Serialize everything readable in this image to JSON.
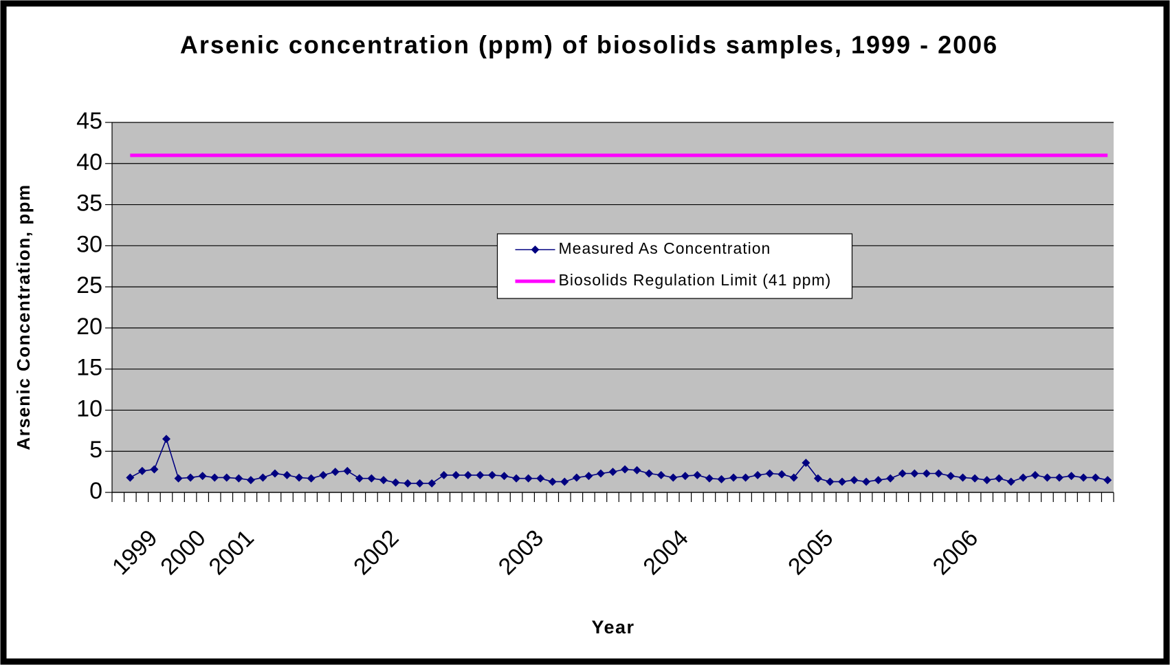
{
  "chart_data": {
    "type": "line",
    "title": "Arsenic concentration (ppm) of biosolids samples, 1999 - 2006",
    "x_label": "Year",
    "y_label": "Arsenic Concentration, ppm",
    "categories": [
      null,
      null,
      null,
      "1999",
      null,
      null,
      null,
      "2000",
      null,
      null,
      null,
      "2001",
      null,
      null,
      null,
      null,
      null,
      null,
      null,
      null,
      null,
      null,
      null,
      "2002",
      null,
      null,
      null,
      null,
      null,
      null,
      null,
      null,
      null,
      null,
      null,
      "2003",
      null,
      null,
      null,
      null,
      null,
      null,
      null,
      null,
      null,
      null,
      null,
      "2004",
      null,
      null,
      null,
      null,
      null,
      null,
      null,
      null,
      null,
      null,
      null,
      "2005",
      null,
      null,
      null,
      null,
      null,
      null,
      null,
      null,
      null,
      null,
      null,
      "2006",
      null,
      null,
      null,
      null,
      null,
      null,
      null,
      null,
      null,
      null,
      null
    ],
    "series": [
      {
        "name": "Measured As Concentration",
        "color": "#000080",
        "marker": "diamond",
        "values": [
          null,
          1.8,
          2.6,
          2.8,
          6.5,
          1.7,
          1.8,
          2.0,
          1.8,
          1.8,
          1.7,
          1.5,
          1.8,
          2.3,
          2.1,
          1.8,
          1.7,
          2.1,
          2.5,
          2.6,
          1.7,
          1.7,
          1.5,
          1.2,
          1.1,
          1.1,
          1.1,
          2.1,
          2.1,
          2.1,
          2.1,
          2.1,
          2.0,
          1.7,
          1.7,
          1.7,
          1.3,
          1.3,
          1.8,
          2.0,
          2.3,
          2.5,
          2.8,
          2.7,
          2.3,
          2.1,
          1.8,
          2.0,
          2.1,
          1.7,
          1.6,
          1.8,
          1.8,
          2.1,
          2.3,
          2.2,
          1.8,
          3.6,
          1.7,
          1.3,
          1.3,
          1.5,
          1.3,
          1.5,
          1.7,
          2.3,
          2.3,
          2.3,
          2.3,
          2.0,
          1.8,
          1.7,
          1.5,
          1.7,
          1.3,
          1.8,
          2.1,
          1.8,
          1.8,
          2.0,
          1.8,
          1.8,
          1.5
        ]
      },
      {
        "name": "Biosolids Regulation Limit (41 ppm)",
        "color": "#ff00ff",
        "values": [
          null,
          41,
          41,
          41,
          41,
          41,
          41,
          41,
          41,
          41,
          41,
          41,
          41,
          41,
          41,
          41,
          41,
          41,
          41,
          41,
          41,
          41,
          41,
          41,
          41,
          41,
          41,
          41,
          41,
          41,
          41,
          41,
          41,
          41,
          41,
          41,
          41,
          41,
          41,
          41,
          41,
          41,
          41,
          41,
          41,
          41,
          41,
          41,
          41,
          41,
          41,
          41,
          41,
          41,
          41,
          41,
          41,
          41,
          41,
          41,
          41,
          41,
          41,
          41,
          41,
          41,
          41,
          41,
          41,
          41,
          41,
          41,
          41,
          41,
          41,
          41,
          41,
          41,
          41,
          41,
          41,
          41,
          41
        ]
      }
    ],
    "ylim": [
      0,
      45
    ],
    "yticks": [
      0,
      5,
      10,
      15,
      20,
      25,
      30,
      35,
      40,
      45
    ],
    "grid": true,
    "legend": "center"
  }
}
